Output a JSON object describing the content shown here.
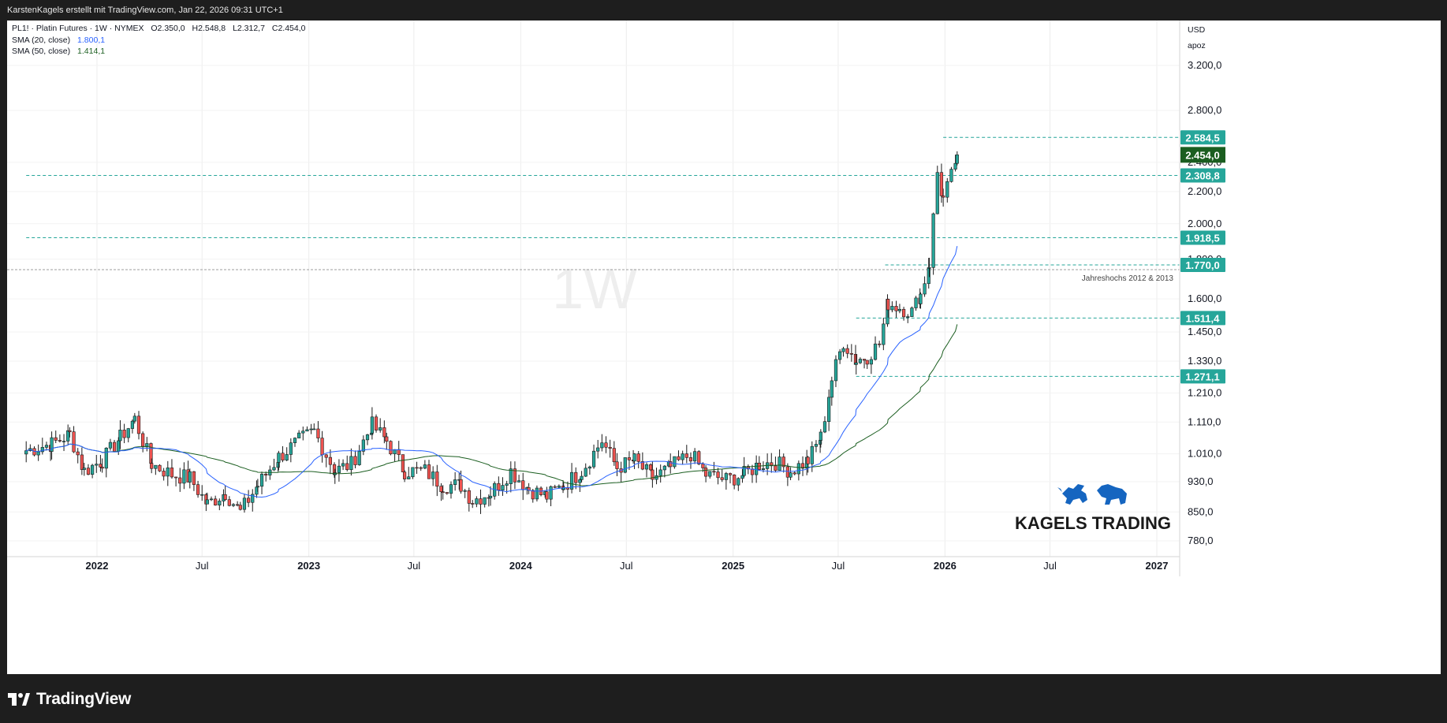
{
  "header": {
    "attribution": "KarstenKagels erstellt mit TradingView.com, Jan 22, 2026 09:31 UTC+1"
  },
  "legend": {
    "symbol_line": "PL1! · Platin Futures · 1W · NYMEX",
    "ohlc": {
      "o": "O2.350,0",
      "h": "H2.548,8",
      "l": "L2.312,7",
      "c": "C2.454,0"
    },
    "sma20": {
      "label": "SMA (20, close)",
      "value": "1.800,1"
    },
    "sma50": {
      "label": "SMA (50, close)",
      "value": "1.414,1"
    }
  },
  "watermark": "1W",
  "price_scale": {
    "currency": "USD",
    "mode": "apoz"
  },
  "annotation": "Jahreshochs 2012 & 2013",
  "logo": {
    "text": "KAGELS TRADING"
  },
  "footer": {
    "brand": "TradingView"
  },
  "colors": {
    "up": "#26a69a",
    "down": "#ef5350",
    "sma20": "#2962ff",
    "sma50": "#1b5e20",
    "level": "#26a69a",
    "last_price": "#1b5e20",
    "logo": "#1565c0"
  },
  "chart_data": {
    "type": "candlestick",
    "title": "PL1! · Platin Futures · 1W · NYMEX",
    "timeframe": "1W",
    "x_range": [
      "2021-09",
      "2027-03"
    ],
    "x_ticks": [
      {
        "date": "2022-01-01",
        "label": "2022"
      },
      {
        "date": "2022-07-01",
        "label": "Jul"
      },
      {
        "date": "2023-01-01",
        "label": "2023"
      },
      {
        "date": "2023-07-01",
        "label": "Jul"
      },
      {
        "date": "2024-01-01",
        "label": "2024"
      },
      {
        "date": "2024-07-01",
        "label": "Jul"
      },
      {
        "date": "2025-01-01",
        "label": "2025"
      },
      {
        "date": "2025-07-01",
        "label": "Jul"
      },
      {
        "date": "2026-01-01",
        "label": "2026"
      },
      {
        "date": "2026-07-01",
        "label": "Jul"
      },
      {
        "date": "2027-01-01",
        "label": "2027"
      }
    ],
    "y_scale": "log",
    "y_range": [
      740,
      3500
    ],
    "y_ticks": [
      {
        "value": 3200,
        "label": "3.200,0"
      },
      {
        "value": 2800,
        "label": "2.800,0"
      },
      {
        "value": 2400,
        "label": "2.400,0"
      },
      {
        "value": 2200,
        "label": "2.200,0"
      },
      {
        "value": 2000,
        "label": "2.000,0"
      },
      {
        "value": 1800,
        "label": "1.800,0"
      },
      {
        "value": 1600,
        "label": "1.600,0"
      },
      {
        "value": 1450,
        "label": "1.450,0"
      },
      {
        "value": 1330,
        "label": "1.330,0"
      },
      {
        "value": 1210,
        "label": "1.210,0"
      },
      {
        "value": 1110,
        "label": "1.110,0"
      },
      {
        "value": 1010,
        "label": "1.010,0"
      },
      {
        "value": 930,
        "label": "930,0"
      },
      {
        "value": 850,
        "label": "850,0"
      },
      {
        "value": 780,
        "label": "780,0"
      }
    ],
    "levels": [
      {
        "value": 2584.5,
        "label": "2.584,5",
        "start": "2025-12-29"
      },
      {
        "value": 2308.8,
        "label": "2.308,8",
        "start": "2021-09-01"
      },
      {
        "value": 1918.5,
        "label": "1.918,5",
        "start": "2021-09-01"
      },
      {
        "value": 1770.0,
        "label": "1.770,0",
        "start": "2025-09-20"
      },
      {
        "value": 1511.4,
        "label": "1.511,4",
        "start": "2025-08-01"
      },
      {
        "value": 1271.1,
        "label": "1.271,1",
        "start": "2025-08-01"
      }
    ],
    "jahreshoch_level": 1745,
    "last_price": {
      "value": 2454.0,
      "label": "2.454,0"
    },
    "grid": true,
    "sma20": {
      "name": "SMA (20, close)",
      "value": 1800.1
    },
    "sma50": {
      "name": "SMA (50, close)",
      "value": 1414.1
    },
    "candle_closes": [
      {
        "x": "2021-09-01",
        "c": 1020
      },
      {
        "x": "2021-10-15",
        "c": 1040
      },
      {
        "x": "2021-11-15",
        "c": 1070
      },
      {
        "x": "2021-12-10",
        "c": 960
      },
      {
        "x": "2022-01-10",
        "c": 990
      },
      {
        "x": "2022-02-10",
        "c": 1060
      },
      {
        "x": "2022-03-07",
        "c": 1120
      },
      {
        "x": "2022-04-05",
        "c": 980
      },
      {
        "x": "2022-05-10",
        "c": 950
      },
      {
        "x": "2022-06-10",
        "c": 940
      },
      {
        "x": "2022-07-10",
        "c": 870
      },
      {
        "x": "2022-08-10",
        "c": 900
      },
      {
        "x": "2022-09-05",
        "c": 850
      },
      {
        "x": "2022-10-05",
        "c": 920
      },
      {
        "x": "2022-11-10",
        "c": 1000
      },
      {
        "x": "2022-12-15",
        "c": 1050
      },
      {
        "x": "2023-01-10",
        "c": 1080
      },
      {
        "x": "2023-02-15",
        "c": 960
      },
      {
        "x": "2023-03-15",
        "c": 980
      },
      {
        "x": "2023-04-20",
        "c": 1100
      },
      {
        "x": "2023-05-15",
        "c": 1050
      },
      {
        "x": "2023-06-15",
        "c": 960
      },
      {
        "x": "2023-07-20",
        "c": 960
      },
      {
        "x": "2023-08-20",
        "c": 920
      },
      {
        "x": "2023-09-20",
        "c": 920
      },
      {
        "x": "2023-10-10",
        "c": 880
      },
      {
        "x": "2023-11-10",
        "c": 900
      },
      {
        "x": "2023-12-15",
        "c": 960
      },
      {
        "x": "2024-01-15",
        "c": 910
      },
      {
        "x": "2024-02-15",
        "c": 890
      },
      {
        "x": "2024-03-15",
        "c": 920
      },
      {
        "x": "2024-04-15",
        "c": 960
      },
      {
        "x": "2024-05-20",
        "c": 1050
      },
      {
        "x": "2024-06-15",
        "c": 970
      },
      {
        "x": "2024-07-15",
        "c": 990
      },
      {
        "x": "2024-08-15",
        "c": 940
      },
      {
        "x": "2024-09-15",
        "c": 970
      },
      {
        "x": "2024-10-20",
        "c": 1010
      },
      {
        "x": "2024-11-15",
        "c": 950
      },
      {
        "x": "2024-12-20",
        "c": 935
      },
      {
        "x": "2025-01-20",
        "c": 950
      },
      {
        "x": "2025-02-15",
        "c": 980
      },
      {
        "x": "2025-03-15",
        "c": 985
      },
      {
        "x": "2025-04-10",
        "c": 960
      },
      {
        "x": "2025-05-10",
        "c": 990
      },
      {
        "x": "2025-06-01",
        "c": 1060
      },
      {
        "x": "2025-06-20",
        "c": 1260
      },
      {
        "x": "2025-07-10",
        "c": 1410
      },
      {
        "x": "2025-08-01",
        "c": 1330
      },
      {
        "x": "2025-08-20",
        "c": 1350
      },
      {
        "x": "2025-09-10",
        "c": 1400
      },
      {
        "x": "2025-09-25",
        "c": 1580
      },
      {
        "x": "2025-10-15",
        "c": 1560
      },
      {
        "x": "2025-11-05",
        "c": 1540
      },
      {
        "x": "2025-11-20",
        "c": 1620
      },
      {
        "x": "2025-12-05",
        "c": 1780
      },
      {
        "x": "2025-12-19",
        "c": 2330
      },
      {
        "x": "2025-12-29",
        "c": 2150
      },
      {
        "x": "2026-01-12",
        "c": 2300
      },
      {
        "x": "2026-01-22",
        "c": 2454
      }
    ]
  }
}
